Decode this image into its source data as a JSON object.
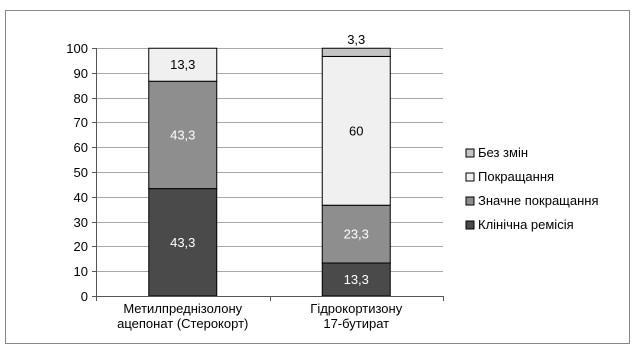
{
  "chart_data": {
    "type": "bar",
    "stacked": true,
    "categories": [
      [
        "Метилпреднізолону",
        "ацепонат (Стерокорт)"
      ],
      [
        "Гідрокортизону",
        "17-бутират"
      ]
    ],
    "series": [
      {
        "name": "Клінічна ремісія",
        "color": "#4a4a4a",
        "label_color": "#ffffff",
        "values": [
          43.3,
          13.3
        ],
        "labels": [
          "43,3",
          "13,3"
        ]
      },
      {
        "name": "Значне покращання",
        "color": "#8e8e8e",
        "label_color": "#ffffff",
        "values": [
          43.3,
          23.3
        ],
        "labels": [
          "43,3",
          "23,3"
        ]
      },
      {
        "name": "Покращання",
        "color": "#f0f0f0",
        "label_color": "#000000",
        "values": [
          13.3,
          60
        ],
        "labels": [
          "13,3",
          "60"
        ]
      },
      {
        "name": "Без змін",
        "color": "#c4c4c4",
        "label_color": "#000000",
        "values": [
          0,
          3.3
        ],
        "labels": [
          "",
          "3,3"
        ]
      }
    ],
    "legend_order": [
      3,
      2,
      1,
      0
    ],
    "legend_position": "right",
    "ylim": [
      0,
      100
    ],
    "yticks": [
      0,
      10,
      20,
      30,
      40,
      50,
      60,
      70,
      80,
      90,
      100
    ],
    "grid": true,
    "title": "",
    "xlabel": "",
    "ylabel": ""
  }
}
